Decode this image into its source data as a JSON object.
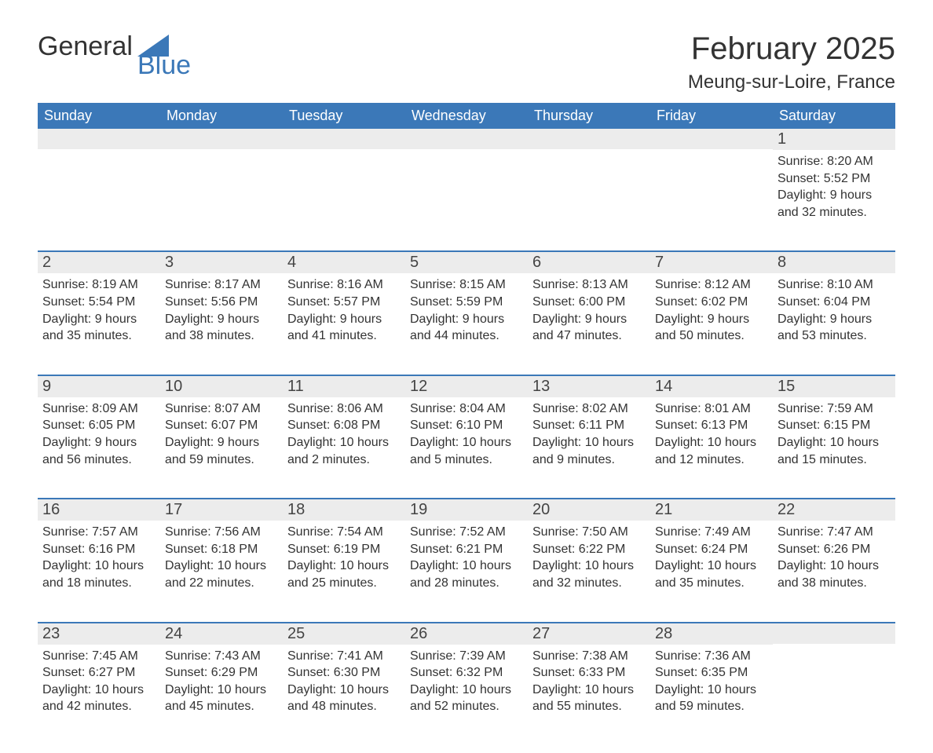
{
  "logo": {
    "general": "General",
    "blue": "Blue"
  },
  "title": "February 2025",
  "location": "Meung-sur-Loire, France",
  "weekdays": [
    "Sunday",
    "Monday",
    "Tuesday",
    "Wednesday",
    "Thursday",
    "Friday",
    "Saturday"
  ],
  "colors": {
    "brand_blue": "#3b78b8",
    "header_text": "#ffffff",
    "band_bg": "#ececec",
    "text": "#333333",
    "page_bg": "#ffffff"
  },
  "typography": {
    "title_fontsize": 40,
    "location_fontsize": 24,
    "weekday_fontsize": 18,
    "daynum_fontsize": 20,
    "detail_fontsize": 16
  },
  "calendar": {
    "type": "table",
    "start_day_index": 6,
    "days": [
      {
        "n": 1,
        "sunrise": "8:20 AM",
        "sunset": "5:52 PM",
        "daylight": "9 hours and 32 minutes."
      },
      {
        "n": 2,
        "sunrise": "8:19 AM",
        "sunset": "5:54 PM",
        "daylight": "9 hours and 35 minutes."
      },
      {
        "n": 3,
        "sunrise": "8:17 AM",
        "sunset": "5:56 PM",
        "daylight": "9 hours and 38 minutes."
      },
      {
        "n": 4,
        "sunrise": "8:16 AM",
        "sunset": "5:57 PM",
        "daylight": "9 hours and 41 minutes."
      },
      {
        "n": 5,
        "sunrise": "8:15 AM",
        "sunset": "5:59 PM",
        "daylight": "9 hours and 44 minutes."
      },
      {
        "n": 6,
        "sunrise": "8:13 AM",
        "sunset": "6:00 PM",
        "daylight": "9 hours and 47 minutes."
      },
      {
        "n": 7,
        "sunrise": "8:12 AM",
        "sunset": "6:02 PM",
        "daylight": "9 hours and 50 minutes."
      },
      {
        "n": 8,
        "sunrise": "8:10 AM",
        "sunset": "6:04 PM",
        "daylight": "9 hours and 53 minutes."
      },
      {
        "n": 9,
        "sunrise": "8:09 AM",
        "sunset": "6:05 PM",
        "daylight": "9 hours and 56 minutes."
      },
      {
        "n": 10,
        "sunrise": "8:07 AM",
        "sunset": "6:07 PM",
        "daylight": "9 hours and 59 minutes."
      },
      {
        "n": 11,
        "sunrise": "8:06 AM",
        "sunset": "6:08 PM",
        "daylight": "10 hours and 2 minutes."
      },
      {
        "n": 12,
        "sunrise": "8:04 AM",
        "sunset": "6:10 PM",
        "daylight": "10 hours and 5 minutes."
      },
      {
        "n": 13,
        "sunrise": "8:02 AM",
        "sunset": "6:11 PM",
        "daylight": "10 hours and 9 minutes."
      },
      {
        "n": 14,
        "sunrise": "8:01 AM",
        "sunset": "6:13 PM",
        "daylight": "10 hours and 12 minutes."
      },
      {
        "n": 15,
        "sunrise": "7:59 AM",
        "sunset": "6:15 PM",
        "daylight": "10 hours and 15 minutes."
      },
      {
        "n": 16,
        "sunrise": "7:57 AM",
        "sunset": "6:16 PM",
        "daylight": "10 hours and 18 minutes."
      },
      {
        "n": 17,
        "sunrise": "7:56 AM",
        "sunset": "6:18 PM",
        "daylight": "10 hours and 22 minutes."
      },
      {
        "n": 18,
        "sunrise": "7:54 AM",
        "sunset": "6:19 PM",
        "daylight": "10 hours and 25 minutes."
      },
      {
        "n": 19,
        "sunrise": "7:52 AM",
        "sunset": "6:21 PM",
        "daylight": "10 hours and 28 minutes."
      },
      {
        "n": 20,
        "sunrise": "7:50 AM",
        "sunset": "6:22 PM",
        "daylight": "10 hours and 32 minutes."
      },
      {
        "n": 21,
        "sunrise": "7:49 AM",
        "sunset": "6:24 PM",
        "daylight": "10 hours and 35 minutes."
      },
      {
        "n": 22,
        "sunrise": "7:47 AM",
        "sunset": "6:26 PM",
        "daylight": "10 hours and 38 minutes."
      },
      {
        "n": 23,
        "sunrise": "7:45 AM",
        "sunset": "6:27 PM",
        "daylight": "10 hours and 42 minutes."
      },
      {
        "n": 24,
        "sunrise": "7:43 AM",
        "sunset": "6:29 PM",
        "daylight": "10 hours and 45 minutes."
      },
      {
        "n": 25,
        "sunrise": "7:41 AM",
        "sunset": "6:30 PM",
        "daylight": "10 hours and 48 minutes."
      },
      {
        "n": 26,
        "sunrise": "7:39 AM",
        "sunset": "6:32 PM",
        "daylight": "10 hours and 52 minutes."
      },
      {
        "n": 27,
        "sunrise": "7:38 AM",
        "sunset": "6:33 PM",
        "daylight": "10 hours and 55 minutes."
      },
      {
        "n": 28,
        "sunrise": "7:36 AM",
        "sunset": "6:35 PM",
        "daylight": "10 hours and 59 minutes."
      }
    ]
  },
  "labels": {
    "sunrise": "Sunrise:",
    "sunset": "Sunset:",
    "daylight": "Daylight:"
  }
}
